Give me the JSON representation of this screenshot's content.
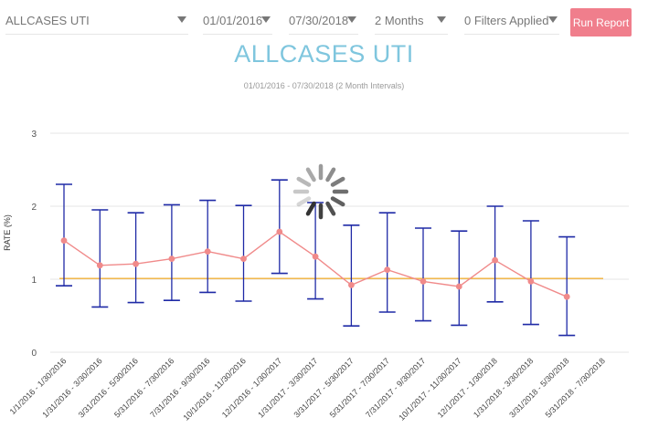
{
  "toolbar": {
    "case_select": "ALLCASES UTI",
    "start_date": "01/01/2016",
    "end_date": "07/30/2018",
    "interval": "2 Months",
    "filters": "0 Filters Applied",
    "run_label": "Run Report"
  },
  "title": "ALLCASES UTI",
  "subtitle": "01/01/2016 - 07/30/2018 (2 Month Intervals)",
  "colors": {
    "accent_button": "#f07e8c",
    "title": "#7fc6de",
    "error_bar": "#1f2aa6",
    "series_line": "#f08a8a",
    "reference_line": "#f2b23a"
  },
  "icons": {
    "loading": "loading-spinner-icon",
    "dropdown": "chevron-down-icon"
  },
  "chart_data": {
    "type": "line",
    "title": "",
    "ylabel": "RATE (%)",
    "xlabel": "",
    "ylim": [
      0,
      3
    ],
    "yticks": [
      0,
      1,
      2,
      3
    ],
    "grid": true,
    "categories": [
      "1/1/2016 - 1/30/2016",
      "1/31/2016 - 3/30/2016",
      "3/31/2016 - 5/30/2016",
      "5/31/2016 - 7/30/2016",
      "7/31/2016 - 9/30/2016",
      "10/1/2016 - 11/30/2016",
      "12/1/2016 - 1/30/2017",
      "1/31/2017 - 3/30/2017",
      "3/31/2017 - 5/30/2017",
      "5/31/2017 - 7/30/2017",
      "7/31/2017 - 9/30/2017",
      "10/1/2017 - 11/30/2017",
      "12/1/2017 - 1/30/2018",
      "1/31/2018 - 3/30/2018",
      "3/31/2018 - 5/30/2018",
      "5/31/2018 - 7/30/2018"
    ],
    "values": [
      1.53,
      1.19,
      1.21,
      1.28,
      1.38,
      1.28,
      1.65,
      1.31,
      0.92,
      1.13,
      0.97,
      0.9,
      1.26,
      0.97,
      0.76,
      null
    ],
    "error_low": [
      0.91,
      0.62,
      0.68,
      0.71,
      0.82,
      0.7,
      1.08,
      0.73,
      0.36,
      0.55,
      0.43,
      0.37,
      0.69,
      0.38,
      0.23,
      null
    ],
    "error_high": [
      2.3,
      1.95,
      1.91,
      2.02,
      2.08,
      2.01,
      2.36,
      2.05,
      1.74,
      1.91,
      1.7,
      1.66,
      2.0,
      1.8,
      1.58,
      null
    ],
    "reference_line": 1.01
  }
}
